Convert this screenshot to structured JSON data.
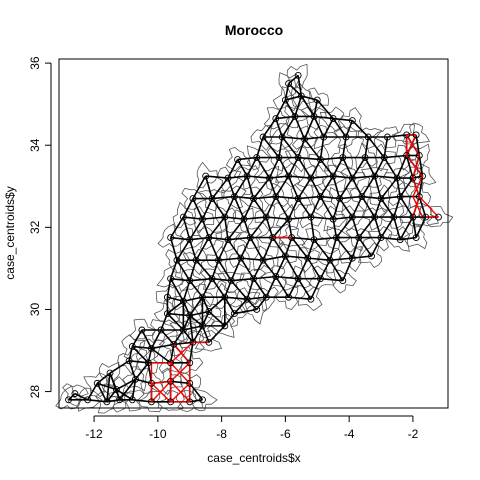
{
  "chart_data": {
    "type": "scatter",
    "title": "Morocco",
    "xlabel": "case_centroids$x",
    "ylabel": "case_centroids$y",
    "xlim": [
      -13.1,
      -0.9
    ],
    "ylim": [
      27.6,
      36.1
    ],
    "x_ticks": [
      -12,
      -10,
      -8,
      -6,
      -4,
      -2
    ],
    "y_ticks": [
      28,
      30,
      32,
      34,
      36
    ],
    "grid": false,
    "point_symbol": "open-circle",
    "colors": {
      "black_links": "#000000",
      "red_links": "#ff0000",
      "region_outlines": "#555555"
    },
    "points": [
      [
        -12.8,
        27.8
      ],
      [
        -12.2,
        27.8
      ],
      [
        -11.6,
        27.75
      ],
      [
        -11.2,
        27.8
      ],
      [
        -10.8,
        27.8
      ],
      [
        -10.2,
        27.75
      ],
      [
        -9.6,
        27.75
      ],
      [
        -9.0,
        27.75
      ],
      [
        -8.6,
        27.8
      ],
      [
        -12.6,
        27.95
      ],
      [
        -11.9,
        28.2
      ],
      [
        -11.3,
        28.05
      ],
      [
        -10.7,
        28.3
      ],
      [
        -10.2,
        28.2
      ],
      [
        -9.6,
        28.25
      ],
      [
        -9.0,
        28.2
      ],
      [
        -11.5,
        28.45
      ],
      [
        -10.9,
        28.75
      ],
      [
        -10.3,
        28.7
      ],
      [
        -9.6,
        28.7
      ],
      [
        -9.0,
        28.7
      ],
      [
        -10.8,
        29.1
      ],
      [
        -10.2,
        29.05
      ],
      [
        -9.5,
        29.15
      ],
      [
        -8.9,
        29.2
      ],
      [
        -8.4,
        29.2
      ],
      [
        -10.5,
        29.5
      ],
      [
        -9.9,
        29.5
      ],
      [
        -9.2,
        29.5
      ],
      [
        -8.6,
        29.6
      ],
      [
        -7.9,
        29.6
      ],
      [
        -9.7,
        29.9
      ],
      [
        -9.0,
        29.85
      ],
      [
        -8.4,
        29.95
      ],
      [
        -7.6,
        29.9
      ],
      [
        -6.9,
        30.0
      ],
      [
        -9.7,
        30.3
      ],
      [
        -9.2,
        30.2
      ],
      [
        -8.6,
        30.3
      ],
      [
        -7.9,
        30.3
      ],
      [
        -7.2,
        30.25
      ],
      [
        -6.6,
        30.3
      ],
      [
        -5.9,
        30.3
      ],
      [
        -5.2,
        30.25
      ],
      [
        -9.6,
        30.75
      ],
      [
        -9.0,
        30.7
      ],
      [
        -8.3,
        30.75
      ],
      [
        -7.7,
        30.7
      ],
      [
        -7.0,
        30.75
      ],
      [
        -6.3,
        30.8
      ],
      [
        -5.6,
        30.75
      ],
      [
        -4.9,
        30.75
      ],
      [
        -4.2,
        30.7
      ],
      [
        -9.4,
        31.2
      ],
      [
        -8.8,
        31.2
      ],
      [
        -8.1,
        31.2
      ],
      [
        -7.4,
        31.25
      ],
      [
        -6.7,
        31.2
      ],
      [
        -6.0,
        31.3
      ],
      [
        -5.3,
        31.25
      ],
      [
        -4.6,
        31.2
      ],
      [
        -3.9,
        31.25
      ],
      [
        -3.3,
        31.3
      ],
      [
        -9.6,
        31.75
      ],
      [
        -9.0,
        31.7
      ],
      [
        -8.4,
        31.75
      ],
      [
        -7.8,
        31.7
      ],
      [
        -7.1,
        31.75
      ],
      [
        -6.4,
        31.75
      ],
      [
        -5.8,
        31.75
      ],
      [
        -5.1,
        31.7
      ],
      [
        -4.4,
        31.75
      ],
      [
        -3.7,
        31.75
      ],
      [
        -3.0,
        31.75
      ],
      [
        -2.4,
        31.7
      ],
      [
        -1.9,
        31.75
      ],
      [
        -9.2,
        32.25
      ],
      [
        -8.6,
        32.2
      ],
      [
        -7.9,
        32.25
      ],
      [
        -7.3,
        32.2
      ],
      [
        -6.6,
        32.25
      ],
      [
        -5.9,
        32.2
      ],
      [
        -5.2,
        32.25
      ],
      [
        -4.5,
        32.2
      ],
      [
        -3.9,
        32.25
      ],
      [
        -3.2,
        32.25
      ],
      [
        -2.6,
        32.25
      ],
      [
        -2.0,
        32.25
      ],
      [
        -1.6,
        32.25
      ],
      [
        -1.2,
        32.25
      ],
      [
        -8.9,
        32.7
      ],
      [
        -8.3,
        32.7
      ],
      [
        -7.6,
        32.75
      ],
      [
        -7.0,
        32.7
      ],
      [
        -6.3,
        32.75
      ],
      [
        -5.6,
        32.7
      ],
      [
        -4.9,
        32.75
      ],
      [
        -4.3,
        32.7
      ],
      [
        -3.6,
        32.75
      ],
      [
        -3.0,
        32.7
      ],
      [
        -2.4,
        32.75
      ],
      [
        -1.8,
        32.75
      ],
      [
        -8.5,
        33.25
      ],
      [
        -7.8,
        33.2
      ],
      [
        -7.2,
        33.25
      ],
      [
        -6.5,
        33.2
      ],
      [
        -5.9,
        33.25
      ],
      [
        -5.2,
        33.2
      ],
      [
        -4.5,
        33.25
      ],
      [
        -3.9,
        33.2
      ],
      [
        -3.2,
        33.25
      ],
      [
        -2.5,
        33.2
      ],
      [
        -2.0,
        33.2
      ],
      [
        -1.7,
        33.25
      ],
      [
        -7.5,
        33.65
      ],
      [
        -6.9,
        33.7
      ],
      [
        -6.2,
        33.7
      ],
      [
        -5.6,
        33.7
      ],
      [
        -4.9,
        33.65
      ],
      [
        -4.2,
        33.7
      ],
      [
        -3.5,
        33.7
      ],
      [
        -2.9,
        33.7
      ],
      [
        -2.2,
        33.75
      ],
      [
        -1.8,
        33.75
      ],
      [
        -6.7,
        34.2
      ],
      [
        -6.1,
        34.2
      ],
      [
        -5.4,
        34.15
      ],
      [
        -4.8,
        34.2
      ],
      [
        -4.1,
        34.2
      ],
      [
        -3.4,
        34.2
      ],
      [
        -2.8,
        34.2
      ],
      [
        -2.2,
        34.25
      ],
      [
        -1.9,
        34.25
      ],
      [
        -6.3,
        34.65
      ],
      [
        -5.7,
        34.7
      ],
      [
        -5.1,
        34.7
      ],
      [
        -4.5,
        34.65
      ],
      [
        -3.9,
        34.6
      ],
      [
        -6.0,
        35.1
      ],
      [
        -5.5,
        35.2
      ],
      [
        -5.0,
        35.1
      ],
      [
        -5.9,
        35.5
      ],
      [
        -5.6,
        35.7
      ]
    ],
    "red_links": [
      [
        [
          -10.2,
          27.75
        ],
        [
          -10.2,
          28.7
        ]
      ],
      [
        [
          -10.2,
          28.7
        ],
        [
          -9.6,
          28.7
        ]
      ],
      [
        [
          -10.2,
          28.2
        ],
        [
          -9.6,
          28.25
        ]
      ],
      [
        [
          -9.6,
          27.75
        ],
        [
          -9.0,
          28.2
        ]
      ],
      [
        [
          -9.0,
          27.75
        ],
        [
          -9.6,
          28.25
        ]
      ],
      [
        [
          -9.6,
          27.75
        ],
        [
          -9.0,
          27.75
        ]
      ],
      [
        [
          -9.6,
          28.25
        ],
        [
          -9.0,
          28.7
        ]
      ],
      [
        [
          -9.0,
          28.2
        ],
        [
          -9.6,
          28.7
        ]
      ],
      [
        [
          -9.6,
          28.7
        ],
        [
          -9.6,
          27.75
        ]
      ],
      [
        [
          -9.0,
          28.7
        ],
        [
          -9.0,
          27.75
        ]
      ],
      [
        [
          -9.6,
          28.7
        ],
        [
          -8.9,
          29.2
        ]
      ],
      [
        [
          -9.0,
          28.7
        ],
        [
          -9.5,
          29.15
        ]
      ],
      [
        [
          -8.9,
          29.2
        ],
        [
          -8.4,
          29.2
        ]
      ],
      [
        [
          -10.2,
          28.2
        ],
        [
          -9.6,
          27.75
        ]
      ],
      [
        [
          -10.2,
          27.75
        ],
        [
          -9.6,
          28.25
        ]
      ],
      [
        [
          -2.2,
          34.25
        ],
        [
          -1.9,
          34.25
        ]
      ],
      [
        [
          -2.2,
          34.25
        ],
        [
          -1.8,
          33.75
        ]
      ],
      [
        [
          -1.9,
          34.25
        ],
        [
          -2.2,
          33.75
        ]
      ],
      [
        [
          -2.2,
          33.75
        ],
        [
          -1.7,
          33.25
        ]
      ],
      [
        [
          -1.8,
          33.75
        ],
        [
          -2.0,
          33.2
        ]
      ],
      [
        [
          -2.0,
          33.2
        ],
        [
          -1.8,
          32.75
        ]
      ],
      [
        [
          -1.7,
          33.25
        ],
        [
          -2.0,
          32.75
        ]
      ],
      [
        [
          -2.0,
          32.75
        ],
        [
          -1.7,
          32.25
        ]
      ],
      [
        [
          -1.8,
          32.75
        ],
        [
          -2.0,
          32.25
        ]
      ],
      [
        [
          -1.6,
          32.25
        ],
        [
          -1.2,
          32.25
        ]
      ],
      [
        [
          -1.8,
          32.75
        ],
        [
          -1.2,
          32.25
        ]
      ],
      [
        [
          -2.2,
          34.25
        ],
        [
          -2.2,
          33.75
        ]
      ],
      [
        [
          -6.4,
          31.75
        ],
        [
          -5.8,
          31.75
        ]
      ]
    ]
  }
}
